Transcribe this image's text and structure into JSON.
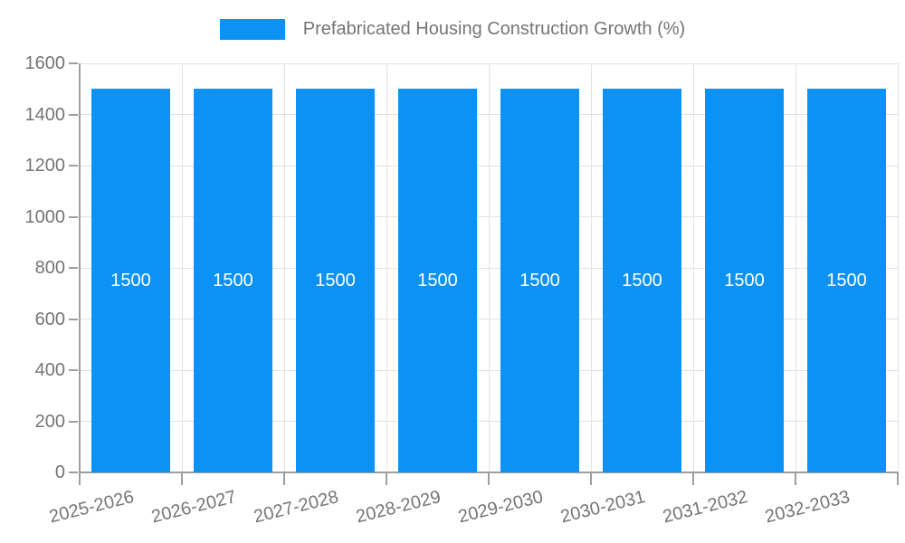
{
  "chart_data": {
    "type": "bar",
    "title": "",
    "legend": {
      "position": "top",
      "label": "Prefabricated Housing Construction Growth (%)"
    },
    "categories": [
      "2025-2026",
      "2026-2027",
      "2027-2028",
      "2028-2029",
      "2029-2030",
      "2030-2031",
      "2031-2032",
      "2032-2033"
    ],
    "series": [
      {
        "name": "Prefabricated Housing Construction Growth (%)",
        "values": [
          1500,
          1500,
          1500,
          1500,
          1500,
          1500,
          1500,
          1500
        ]
      }
    ],
    "bar_value_labels": [
      "1500",
      "1500",
      "1500",
      "1500",
      "1500",
      "1500",
      "1500",
      "1500"
    ],
    "xlabel": "",
    "ylabel": "",
    "ylim": [
      0,
      1600
    ],
    "yticks": [
      0,
      200,
      400,
      600,
      800,
      1000,
      1200,
      1400,
      1600
    ],
    "grid": true,
    "colors": {
      "bar": "#0c92f5",
      "axis": "#9e9e9e",
      "gridline": "#e2e2e2",
      "tick_text": "#757575",
      "bar_label_text": "#ffffff",
      "legend_text": "#757575"
    }
  }
}
